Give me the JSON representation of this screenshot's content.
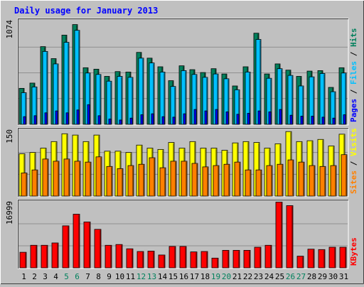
{
  "chart_data": {
    "type": "bar",
    "title": "Daily usage for January 2013",
    "categories": [
      "1",
      "2",
      "3",
      "4",
      "5",
      "6",
      "7",
      "8",
      "9",
      "10",
      "11",
      "12",
      "13",
      "14",
      "15",
      "16",
      "17",
      "18",
      "19",
      "20",
      "21",
      "22",
      "23",
      "24",
      "25",
      "26",
      "27",
      "28",
      "29",
      "30",
      "31"
    ],
    "weekend_days": [
      "5",
      "6",
      "12",
      "13",
      "19",
      "20",
      "26",
      "27"
    ],
    "panels": [
      {
        "id": "hits-files-pages",
        "ymax_label": "1074",
        "ylim": [
          0,
          1074
        ],
        "legend": [
          "Pages",
          "Files",
          "Hits"
        ],
        "series": [
          {
            "name": "Hits",
            "color": "#00805c",
            "values": [
              375,
              430,
              810,
              685,
              930,
              1040,
              590,
              575,
              500,
              550,
              545,
              750,
              690,
              600,
              455,
              610,
              570,
              540,
              580,
              525,
              400,
              600,
              950,
              525,
              630,
              565,
              500,
              555,
              560,
              385,
              590
            ]
          },
          {
            "name": "Files",
            "color": "#00c0ff",
            "values": [
              330,
              390,
              760,
              630,
              855,
              980,
              535,
              520,
              450,
              500,
              490,
              690,
              640,
              545,
              395,
              560,
              520,
              490,
              525,
              475,
              360,
              545,
              885,
              480,
              580,
              510,
              400,
              495,
              530,
              340,
              535
            ]
          },
          {
            "name": "Pages",
            "color": "#0000ff",
            "values": [
              80,
              90,
              120,
              140,
              120,
              150,
              205,
              90,
              55,
              45,
              65,
              100,
              110,
              80,
              75,
              110,
              155,
              140,
              155,
              130,
              105,
              115,
              140,
              130,
              155,
              95,
              85,
              85,
              75,
              65,
              100
            ]
          }
        ]
      },
      {
        "id": "visits-sites",
        "ymax_label": "150",
        "ylim": [
          0,
          150
        ],
        "legend": [
          "Sites",
          "Visits"
        ],
        "series": [
          {
            "name": "Visits",
            "color": "#ffff00",
            "values": [
              97,
              100,
              110,
              125,
              143,
              140,
              125,
              140,
              103,
              103,
              100,
              117,
              110,
              107,
              123,
              110,
              125,
              110,
              110,
              105,
              122,
              125,
              123,
              110,
              120,
              148,
              125,
              127,
              130,
              115,
              142
            ]
          },
          {
            "name": "Sites",
            "color": "#ff8000",
            "values": [
              53,
              60,
              85,
              80,
              85,
              80,
              78,
              90,
              68,
              63,
              70,
              73,
              88,
              65,
              80,
              80,
              75,
              67,
              70,
              73,
              78,
              60,
              60,
              70,
              73,
              83,
              78,
              70,
              68,
              70,
              95
            ]
          }
        ]
      },
      {
        "id": "kbytes",
        "ymax_label": "16999",
        "ylim": [
          0,
          16999
        ],
        "legend": [
          "KBytes"
        ],
        "series": [
          {
            "name": "KBytes",
            "color": "#ff0000",
            "values": [
              4000,
              5800,
              5800,
              6400,
              10800,
              13800,
              11800,
              9900,
              5800,
              6000,
              4900,
              4200,
              4300,
              3300,
              5500,
              5500,
              4100,
              4200,
              2500,
              4500,
              4500,
              4500,
              5300,
              5800,
              16900,
              16000,
              3000,
              4800,
              4700,
              5300,
              5300
            ]
          }
        ]
      }
    ]
  },
  "colors": {
    "background": "#c0c0c0",
    "title": "#0000ff",
    "weekend_label": "#00805c",
    "weekday_label": "#000000",
    "gridline": "#808080"
  }
}
